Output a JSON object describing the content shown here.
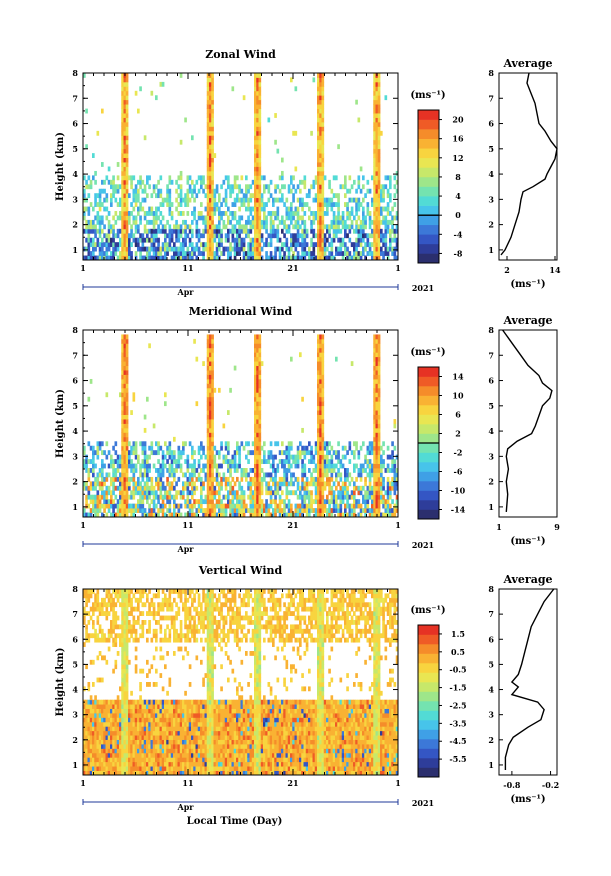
{
  "chart_data": [
    {
      "type": "heatmap",
      "title": "Zonal Wind",
      "ylabel": "Height (km)",
      "units": "(ms⁻¹)",
      "ylim": [
        0.6,
        8
      ],
      "yticks": [
        1,
        2,
        3,
        4,
        5,
        6,
        7,
        8
      ],
      "xticks": [
        "1",
        "11",
        "21",
        "1"
      ],
      "month_label": "Apr",
      "year_label": "2021",
      "colorbar": {
        "min": -10,
        "max": 22,
        "ticks": [
          "20",
          "16",
          "12",
          "8",
          "4",
          "0",
          "-4",
          "-8"
        ],
        "tick_values": [
          20,
          16,
          12,
          8,
          4,
          0,
          -4,
          -8
        ],
        "zero_line": 0
      },
      "average_profile": {
        "title": "Average",
        "xlabel": "(ms⁻¹)",
        "xticks": [
          "2",
          "14"
        ],
        "xlim": [
          0,
          14.5
        ],
        "tick_values": [
          2,
          14
        ],
        "height_km": [
          0.8,
          1.0,
          1.5,
          2.0,
          2.5,
          3.0,
          3.3,
          3.5,
          3.8,
          4.0,
          4.3,
          4.6,
          5.0,
          5.3,
          5.7,
          6.0,
          6.4,
          6.8,
          7.2,
          7.6,
          8.0
        ],
        "wind_ms": [
          0.5,
          1.5,
          3.0,
          4.0,
          5.0,
          5.5,
          6.0,
          8.5,
          11.5,
          12.0,
          13.0,
          14.0,
          14.5,
          13.0,
          11.5,
          10.0,
          9.5,
          9.0,
          8.0,
          7.0,
          7.5
        ]
      }
    },
    {
      "type": "heatmap",
      "title": "Meridional Wind",
      "ylabel": "Height (km)",
      "units": "(ms⁻¹)",
      "ylim": [
        0.6,
        8
      ],
      "yticks": [
        1,
        2,
        3,
        4,
        5,
        6,
        7,
        8
      ],
      "xticks": [
        "1",
        "11",
        "21",
        "1"
      ],
      "month_label": "Apr",
      "year_label": "2021",
      "colorbar": {
        "min": -16,
        "max": 16,
        "ticks": [
          "14",
          "10",
          "6",
          "2",
          "-2",
          "-6",
          "-10",
          "-14"
        ],
        "tick_values": [
          14,
          10,
          6,
          2,
          -2,
          -6,
          -10,
          -14
        ],
        "zero_line": 0
      },
      "average_profile": {
        "title": "Average",
        "xlabel": "(ms⁻¹)",
        "xticks": [
          "1",
          "9"
        ],
        "xlim": [
          1,
          9
        ],
        "tick_values": [
          1,
          9
        ],
        "height_km": [
          0.8,
          1.5,
          2.0,
          2.5,
          3.0,
          3.3,
          3.6,
          3.9,
          4.2,
          4.6,
          5.0,
          5.3,
          5.6,
          5.9,
          6.2,
          6.6,
          7.0,
          7.4,
          7.8,
          8.0
        ],
        "wind_ms": [
          2.0,
          2.2,
          2.0,
          2.3,
          2.0,
          2.2,
          3.5,
          5.5,
          6.0,
          6.5,
          7.0,
          8.0,
          8.3,
          7.0,
          6.5,
          5.0,
          4.0,
          3.0,
          2.0,
          1.5
        ]
      }
    },
    {
      "type": "heatmap",
      "title": "Vertical Wind",
      "ylabel": "Height (km)",
      "xlabel": "Local Time (Day)",
      "units": "(ms⁻¹)",
      "ylim": [
        0.6,
        8
      ],
      "yticks": [
        1,
        2,
        3,
        4,
        5,
        6,
        7,
        8
      ],
      "xticks": [
        "1",
        "11",
        "21",
        "1"
      ],
      "month_label": "Apr",
      "year_label": "2021",
      "colorbar": {
        "min": -6.5,
        "max": 2.0,
        "ticks": [
          "1.5",
          "0.5",
          "-0.5",
          "-1.5",
          "-2.5",
          "-3.5",
          "-4.5",
          "-5.5"
        ],
        "tick_values": [
          1.5,
          0.5,
          -0.5,
          -1.5,
          -2.5,
          -3.5,
          -4.5,
          -5.5
        ]
      },
      "average_profile": {
        "title": "Average",
        "xlabel": "(ms⁻¹)",
        "xticks": [
          "-0.8",
          "-0.2"
        ],
        "xlim": [
          -1.0,
          -0.1
        ],
        "tick_values": [
          -0.8,
          -0.2
        ],
        "height_km": [
          0.8,
          1.3,
          1.8,
          2.1,
          2.5,
          2.8,
          3.2,
          3.5,
          3.8,
          4.1,
          4.3,
          4.6,
          5.0,
          5.5,
          6.0,
          6.5,
          7.0,
          7.5,
          8.0
        ],
        "wind_ms": [
          -0.9,
          -0.9,
          -0.85,
          -0.78,
          -0.55,
          -0.35,
          -0.3,
          -0.4,
          -0.8,
          -0.7,
          -0.8,
          -0.7,
          -0.65,
          -0.6,
          -0.55,
          -0.5,
          -0.4,
          -0.3,
          -0.15
        ]
      }
    }
  ]
}
